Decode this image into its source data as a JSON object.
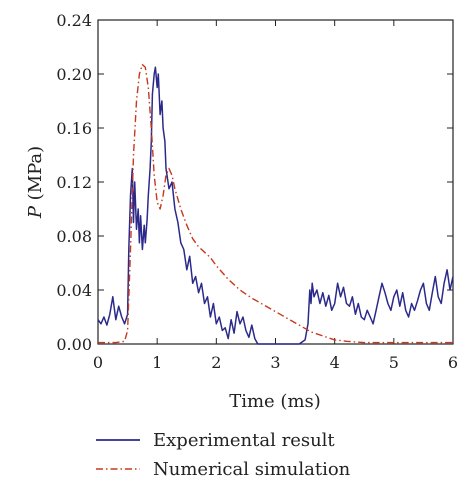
{
  "chart_data": {
    "type": "line",
    "xlabel": "Time (ms)",
    "ylabel_var": "P",
    "ylabel_unit": " (MPa)",
    "xlim": [
      0,
      6
    ],
    "ylim": [
      0,
      0.24
    ],
    "x_ticks": [
      "0",
      "1",
      "2",
      "3",
      "4",
      "5",
      "6"
    ],
    "y_ticks": [
      "0.00",
      "0.04",
      "0.08",
      "0.12",
      "0.16",
      "0.20",
      "0.24"
    ],
    "grid": false,
    "legend_position": "bottom",
    "series": [
      {
        "name": "Experimental result",
        "color": "#2b2a8c",
        "style": "solid",
        "x": [
          0,
          0.05,
          0.1,
          0.15,
          0.2,
          0.25,
          0.3,
          0.35,
          0.4,
          0.45,
          0.5,
          0.52,
          0.55,
          0.58,
          0.6,
          0.62,
          0.65,
          0.68,
          0.7,
          0.72,
          0.75,
          0.78,
          0.8,
          0.83,
          0.85,
          0.88,
          0.9,
          0.92,
          0.95,
          0.97,
          1.0,
          1.02,
          1.05,
          1.08,
          1.1,
          1.13,
          1.15,
          1.2,
          1.25,
          1.3,
          1.35,
          1.4,
          1.45,
          1.5,
          1.55,
          1.6,
          1.65,
          1.7,
          1.75,
          1.8,
          1.85,
          1.9,
          1.95,
          2.0,
          2.05,
          2.1,
          2.15,
          2.2,
          2.25,
          2.3,
          2.35,
          2.4,
          2.45,
          2.5,
          2.55,
          2.6,
          2.65,
          2.7,
          2.8,
          2.9,
          3.0,
          3.1,
          3.2,
          3.3,
          3.4,
          3.5,
          3.55,
          3.58,
          3.6,
          3.62,
          3.65,
          3.7,
          3.75,
          3.8,
          3.85,
          3.9,
          3.95,
          4.0,
          4.05,
          4.1,
          4.15,
          4.2,
          4.25,
          4.3,
          4.35,
          4.4,
          4.45,
          4.5,
          4.55,
          4.6,
          4.65,
          4.7,
          4.75,
          4.8,
          4.85,
          4.9,
          4.95,
          5.0,
          5.05,
          5.1,
          5.15,
          5.2,
          5.25,
          5.3,
          5.35,
          5.4,
          5.45,
          5.5,
          5.55,
          5.6,
          5.65,
          5.7,
          5.75,
          5.8,
          5.85,
          5.9,
          5.95,
          6.0
        ],
        "y": [
          0.018,
          0.015,
          0.02,
          0.014,
          0.022,
          0.035,
          0.018,
          0.028,
          0.02,
          0.015,
          0.022,
          0.07,
          0.11,
          0.13,
          0.09,
          0.12,
          0.085,
          0.1,
          0.075,
          0.095,
          0.07,
          0.088,
          0.075,
          0.092,
          0.11,
          0.13,
          0.15,
          0.185,
          0.2,
          0.205,
          0.19,
          0.2,
          0.17,
          0.18,
          0.16,
          0.15,
          0.13,
          0.115,
          0.12,
          0.1,
          0.09,
          0.075,
          0.07,
          0.055,
          0.065,
          0.045,
          0.05,
          0.038,
          0.045,
          0.03,
          0.035,
          0.02,
          0.03,
          0.015,
          0.02,
          0.01,
          0.012,
          0.004,
          0.018,
          0.008,
          0.024,
          0.015,
          0.02,
          0.01,
          0.005,
          0.014,
          0.004,
          0.0,
          0.0,
          0.0,
          0.0,
          0.0,
          0.0,
          0.0,
          0.0,
          0.003,
          0.015,
          0.04,
          0.03,
          0.045,
          0.035,
          0.04,
          0.03,
          0.038,
          0.028,
          0.036,
          0.025,
          0.03,
          0.045,
          0.035,
          0.042,
          0.03,
          0.028,
          0.035,
          0.022,
          0.03,
          0.02,
          0.018,
          0.025,
          0.02,
          0.015,
          0.025,
          0.035,
          0.045,
          0.038,
          0.03,
          0.025,
          0.035,
          0.04,
          0.028,
          0.038,
          0.025,
          0.02,
          0.03,
          0.025,
          0.032,
          0.04,
          0.045,
          0.03,
          0.025,
          0.038,
          0.05,
          0.035,
          0.03,
          0.045,
          0.055,
          0.04,
          0.05
        ]
      },
      {
        "name": "Numerical simulation",
        "color": "#c8381c",
        "style": "dash-dot",
        "x": [
          0,
          0.3,
          0.45,
          0.5,
          0.55,
          0.6,
          0.65,
          0.7,
          0.75,
          0.8,
          0.85,
          0.9,
          0.95,
          1.0,
          1.05,
          1.1,
          1.15,
          1.2,
          1.25,
          1.3,
          1.4,
          1.5,
          1.6,
          1.7,
          1.8,
          1.9,
          2.0,
          2.2,
          2.4,
          2.6,
          2.8,
          3.0,
          3.2,
          3.4,
          3.6,
          3.8,
          4.0,
          4.2,
          4.5,
          5.0,
          5.5,
          6.0
        ],
        "y": [
          0.001,
          0.001,
          0.002,
          0.01,
          0.07,
          0.14,
          0.18,
          0.2,
          0.207,
          0.205,
          0.19,
          0.16,
          0.125,
          0.105,
          0.1,
          0.11,
          0.125,
          0.13,
          0.125,
          0.115,
          0.1,
          0.088,
          0.078,
          0.072,
          0.068,
          0.064,
          0.058,
          0.048,
          0.04,
          0.034,
          0.029,
          0.024,
          0.019,
          0.014,
          0.009,
          0.006,
          0.003,
          0.002,
          0.001,
          0.001,
          0.001,
          0.001
        ]
      }
    ]
  }
}
